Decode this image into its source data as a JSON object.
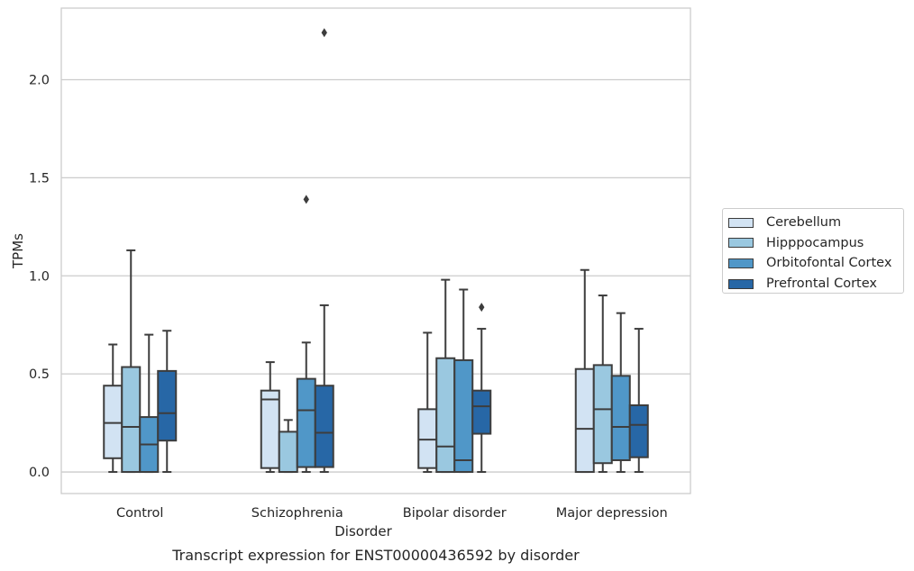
{
  "chart_data": {
    "type": "box",
    "title": "Transcript expression for ENST00000436592 by disorder",
    "xlabel": "Disorder",
    "ylabel": "TPMs",
    "ylim": [
      -0.11,
      2.365
    ],
    "yticks": [
      0.0,
      0.5,
      1.0,
      1.5,
      2.0
    ],
    "ytick_labels": [
      "0.0",
      "0.5",
      "1.0",
      "1.5",
      "2.0"
    ],
    "grid": "horizontal",
    "legend_position": "right-outside",
    "categories": [
      "Control",
      "Schizophrenia",
      "Bipolar disorder",
      "Major depression"
    ],
    "series": [
      {
        "name": "Cerebellum",
        "color": "#d2e3f3",
        "boxes": [
          {
            "whislo": 0.0,
            "q1": 0.07,
            "med": 0.25,
            "q3": 0.44,
            "whishi": 0.65,
            "fliers": []
          },
          {
            "whislo": 0.0,
            "q1": 0.02,
            "med": 0.37,
            "q3": 0.415,
            "whishi": 0.56,
            "fliers": []
          },
          {
            "whislo": 0.0,
            "q1": 0.02,
            "med": 0.165,
            "q3": 0.32,
            "whishi": 0.71,
            "fliers": []
          },
          {
            "whislo": 0.0,
            "q1": 0.0,
            "med": 0.22,
            "q3": 0.525,
            "whishi": 1.03,
            "fliers": []
          }
        ]
      },
      {
        "name": "Hipppocampus",
        "color": "#9ac8e0",
        "boxes": [
          {
            "whislo": 0.0,
            "q1": 0.0,
            "med": 0.23,
            "q3": 0.535,
            "whishi": 1.13,
            "fliers": []
          },
          {
            "whislo": 0.0,
            "q1": 0.0,
            "med": 0.0,
            "q3": 0.205,
            "whishi": 0.265,
            "fliers": []
          },
          {
            "whislo": 0.0,
            "q1": 0.0,
            "med": 0.13,
            "q3": 0.58,
            "whishi": 0.98,
            "fliers": []
          },
          {
            "whislo": 0.0,
            "q1": 0.045,
            "med": 0.32,
            "q3": 0.545,
            "whishi": 0.9,
            "fliers": []
          }
        ]
      },
      {
        "name": "Orbitofontal Cortex",
        "color": "#5097c8",
        "boxes": [
          {
            "whislo": 0.0,
            "q1": 0.0,
            "med": 0.14,
            "q3": 0.28,
            "whishi": 0.7,
            "fliers": []
          },
          {
            "whislo": 0.0,
            "q1": 0.025,
            "med": 0.315,
            "q3": 0.475,
            "whishi": 0.66,
            "fliers": [
              1.39
            ]
          },
          {
            "whislo": 0.0,
            "q1": 0.0,
            "med": 0.06,
            "q3": 0.57,
            "whishi": 0.93,
            "fliers": []
          },
          {
            "whislo": 0.0,
            "q1": 0.06,
            "med": 0.23,
            "q3": 0.49,
            "whishi": 0.81,
            "fliers": []
          }
        ]
      },
      {
        "name": "Prefrontal Cortex",
        "color": "#2767a6",
        "boxes": [
          {
            "whislo": 0.0,
            "q1": 0.16,
            "med": 0.3,
            "q3": 0.515,
            "whishi": 0.72,
            "fliers": []
          },
          {
            "whislo": 0.0,
            "q1": 0.025,
            "med": 0.2,
            "q3": 0.44,
            "whishi": 0.85,
            "fliers": [
              2.24
            ]
          },
          {
            "whislo": 0.0,
            "q1": 0.195,
            "med": 0.335,
            "q3": 0.415,
            "whishi": 0.73,
            "fliers": [
              0.84
            ]
          },
          {
            "whislo": 0.0,
            "q1": 0.075,
            "med": 0.24,
            "q3": 0.34,
            "whishi": 0.73,
            "fliers": []
          }
        ]
      }
    ]
  }
}
